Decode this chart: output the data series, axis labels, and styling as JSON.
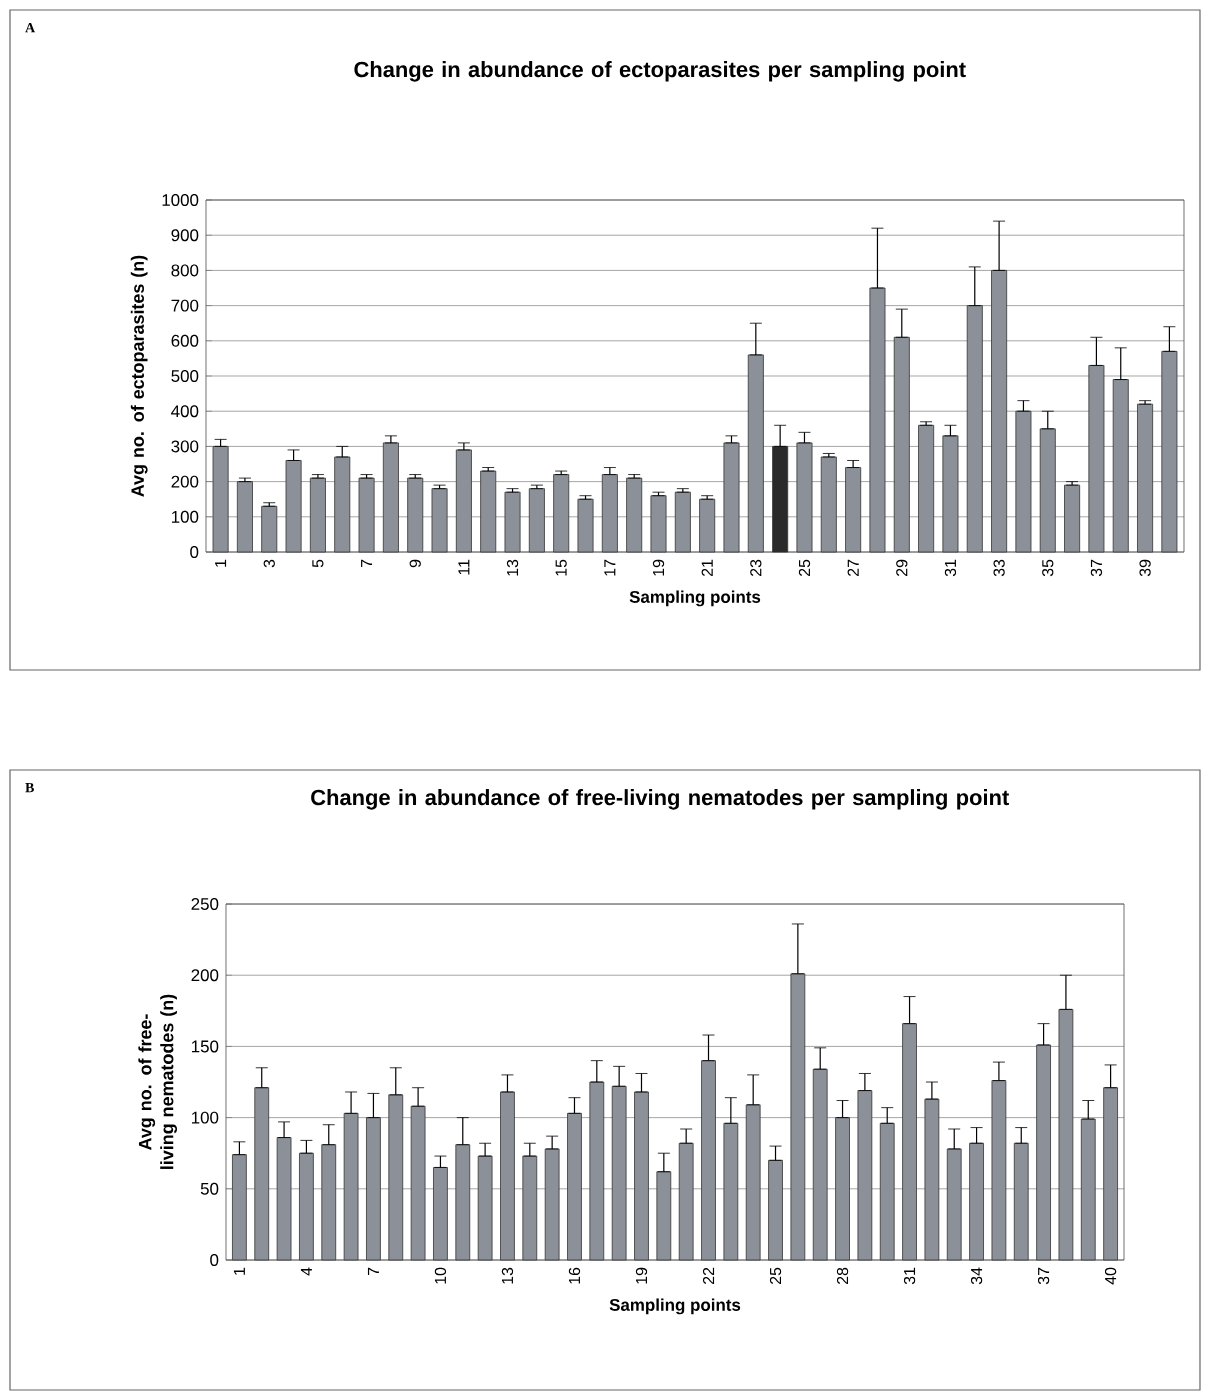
{
  "chart_data": [
    {
      "type": "bar",
      "title": "Change in abundance of ectoparasites per sampling point",
      "xlabel": "Sampling points",
      "ylabel": "Avg no. of ectoparasites (n)",
      "annotations": [
        "A"
      ],
      "categories": [
        "1",
        null,
        "3",
        null,
        "5",
        null,
        "7",
        null,
        "9",
        null,
        "11",
        null,
        "13",
        null,
        "15",
        null,
        "17",
        null,
        "19",
        null,
        "21",
        null,
        "23",
        null,
        "25",
        null,
        "27",
        null,
        "29",
        null,
        "31",
        null,
        "33",
        null,
        "35",
        null,
        "37",
        null,
        "39",
        null
      ],
      "values": [
        300,
        200,
        130,
        260,
        210,
        270,
        210,
        310,
        210,
        180,
        290,
        230,
        170,
        180,
        220,
        150,
        220,
        210,
        160,
        170,
        150,
        310,
        560,
        300,
        310,
        270,
        240,
        750,
        610,
        360,
        330,
        700,
        800,
        400,
        350,
        190,
        530,
        490,
        420,
        570
      ],
      "errors": [
        [
          300,
          320
        ],
        [
          200,
          210
        ],
        [
          130,
          140
        ],
        [
          260,
          290
        ],
        [
          210,
          220
        ],
        [
          270,
          300
        ],
        [
          210,
          220
        ],
        [
          310,
          330
        ],
        [
          210,
          220
        ],
        [
          180,
          190
        ],
        [
          290,
          310
        ],
        [
          230,
          240
        ],
        [
          170,
          180
        ],
        [
          180,
          190
        ],
        [
          220,
          230
        ],
        [
          150,
          160
        ],
        [
          220,
          240
        ],
        [
          210,
          220
        ],
        [
          160,
          170
        ],
        [
          170,
          180
        ],
        [
          150,
          160
        ],
        [
          310,
          330
        ],
        [
          560,
          650
        ],
        [
          300,
          360
        ],
        [
          310,
          340
        ],
        [
          270,
          280
        ],
        [
          240,
          260
        ],
        [
          750,
          920
        ],
        [
          610,
          690
        ],
        [
          360,
          370
        ],
        [
          330,
          360
        ],
        [
          700,
          810
        ],
        [
          800,
          940
        ],
        [
          400,
          430
        ],
        [
          350,
          400
        ],
        [
          190,
          200
        ],
        [
          530,
          610
        ],
        [
          490,
          580
        ],
        [
          420,
          430
        ],
        [
          570,
          640
        ]
      ],
      "colors": [
        "#8c9099",
        "#8c9099",
        "#8c9099",
        "#8c9099",
        "#8c9099",
        "#8c9099",
        "#8c9099",
        "#8c9099",
        "#8c9099",
        "#8c9099",
        "#8c9099",
        "#8c9099",
        "#8c9099",
        "#8c9099",
        "#8c9099",
        "#8c9099",
        "#8c9099",
        "#8c9099",
        "#8c9099",
        "#8c9099",
        "#8c9099",
        "#8c9099",
        "#8c9099",
        "#2a2a2a",
        "#8c9099",
        "#8c9099",
        "#8c9099",
        "#8c9099",
        "#8c9099",
        "#8c9099",
        "#8c9099",
        "#8c9099",
        "#8c9099",
        "#8c9099",
        "#8c9099",
        "#8c9099",
        "#8c9099",
        "#8c9099",
        "#8c9099",
        "#8c9099"
      ],
      "ylim": [
        0,
        1000
      ],
      "yticks": [
        0,
        100,
        200,
        300,
        400,
        500,
        600,
        700,
        800,
        900,
        1000
      ],
      "grid": "y"
    },
    {
      "type": "bar",
      "title": "Change in abundance of free-living nematodes per sampling point",
      "xlabel": "Sampling points",
      "ylabel": "Avg no. of free-living nematodes (n)",
      "annotations": [
        "B"
      ],
      "categories": [
        "1",
        null,
        null,
        "4",
        null,
        null,
        "7",
        null,
        null,
        "10",
        null,
        null,
        "13",
        null,
        null,
        "16",
        null,
        null,
        "19",
        null,
        null,
        "22",
        null,
        null,
        "25",
        null,
        null,
        "28",
        null,
        null,
        "31",
        null,
        null,
        "34",
        null,
        null,
        "37",
        null,
        null,
        "40"
      ],
      "values": [
        74,
        121,
        86,
        75,
        81,
        103,
        100,
        116,
        108,
        65,
        81,
        73,
        118,
        73,
        78,
        103,
        125,
        122,
        118,
        62,
        82,
        140,
        96,
        109,
        70,
        201,
        134,
        100,
        119,
        96,
        166,
        113,
        78,
        82,
        126,
        82,
        151,
        176,
        99,
        121
      ],
      "errors": [
        [
          74,
          83
        ],
        [
          121,
          135
        ],
        [
          86,
          97
        ],
        [
          75,
          84
        ],
        [
          81,
          95
        ],
        [
          103,
          118
        ],
        [
          100,
          117
        ],
        [
          116,
          135
        ],
        [
          108,
          121
        ],
        [
          65,
          73
        ],
        [
          81,
          100
        ],
        [
          73,
          82
        ],
        [
          118,
          130
        ],
        [
          73,
          82
        ],
        [
          78,
          87
        ],
        [
          103,
          114
        ],
        [
          125,
          140
        ],
        [
          122,
          136
        ],
        [
          118,
          131
        ],
        [
          62,
          75
        ],
        [
          82,
          92
        ],
        [
          140,
          158
        ],
        [
          96,
          114
        ],
        [
          109,
          130
        ],
        [
          70,
          80
        ],
        [
          201,
          236
        ],
        [
          134,
          149
        ],
        [
          100,
          112
        ],
        [
          119,
          131
        ],
        [
          96,
          107
        ],
        [
          166,
          185
        ],
        [
          113,
          125
        ],
        [
          78,
          92
        ],
        [
          82,
          93
        ],
        [
          126,
          139
        ],
        [
          82,
          93
        ],
        [
          151,
          166
        ],
        [
          176,
          200
        ],
        [
          99,
          112
        ],
        [
          121,
          137
        ]
      ],
      "color": "#8c9099",
      "ylim": [
        0,
        250
      ],
      "yticks": [
        0,
        50,
        100,
        150,
        200,
        250
      ],
      "grid": "y"
    }
  ]
}
